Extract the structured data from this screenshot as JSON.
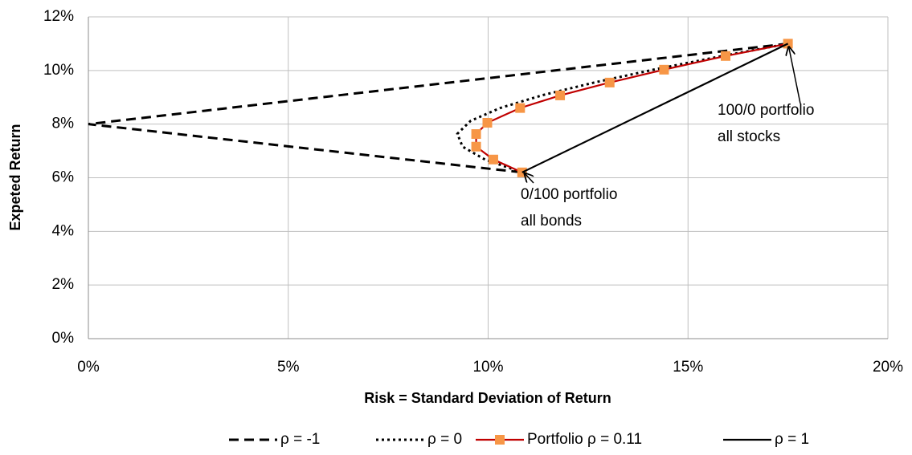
{
  "chart_data": {
    "type": "line",
    "x_label": "Risk = Standard Deviation of Return",
    "y_label": "Expeted Return",
    "xlim": [
      0,
      20
    ],
    "ylim": [
      0,
      12
    ],
    "xticks": [
      {
        "value": 0,
        "label": "0%"
      },
      {
        "value": 5,
        "label": "5%"
      },
      {
        "value": 10,
        "label": "10%"
      },
      {
        "value": 15,
        "label": "15%"
      },
      {
        "value": 20,
        "label": "20%"
      }
    ],
    "yticks": [
      {
        "value": 0,
        "label": "0%"
      },
      {
        "value": 2,
        "label": "2%"
      },
      {
        "value": 4,
        "label": "4%"
      },
      {
        "value": 6,
        "label": "6%"
      },
      {
        "value": 8,
        "label": "8%"
      },
      {
        "value": 10,
        "label": "10%"
      },
      {
        "value": 12,
        "label": "12%"
      }
    ],
    "grid": true,
    "legend": "bottom",
    "series": [
      {
        "name": "ρ = -1",
        "color": "#000000",
        "dash": "dashed",
        "x": [
          17.5,
          0,
          10.85
        ],
        "values": [
          11,
          8,
          6.2
        ]
      },
      {
        "name": "ρ = 0",
        "color": "#000000",
        "dash": "dotted",
        "x": [
          10.85,
          9.92,
          9.36,
          9.23,
          9.56,
          10.3,
          11.36,
          12.68,
          14.17,
          15.79,
          17.5
        ],
        "values": [
          6.2,
          6.68,
          7.16,
          7.64,
          8.12,
          8.6,
          9.08,
          9.56,
          10.04,
          10.52,
          11
        ]
      },
      {
        "name": "Portfolio ρ = 0.11",
        "color": "#c00000",
        "marker_color": "#f79646",
        "dash": "solid",
        "x": [
          10.85,
          10.13,
          9.7,
          9.7,
          9.98,
          10.8,
          11.8,
          13.04,
          14.4,
          15.94,
          17.5
        ],
        "values": [
          6.2,
          6.68,
          7.16,
          7.63,
          8.05,
          8.6,
          9.07,
          9.55,
          10.03,
          10.54,
          11
        ]
      },
      {
        "name": "ρ = 1",
        "color": "#000000",
        "dash": "solid",
        "x": [
          10.85,
          17.5
        ],
        "values": [
          6.2,
          11
        ]
      }
    ],
    "annotations": [
      {
        "lines": [
          "100/0 portfolio",
          "all stocks"
        ]
      },
      {
        "lines": [
          "0/100 portfolio",
          "all bonds"
        ]
      }
    ]
  }
}
